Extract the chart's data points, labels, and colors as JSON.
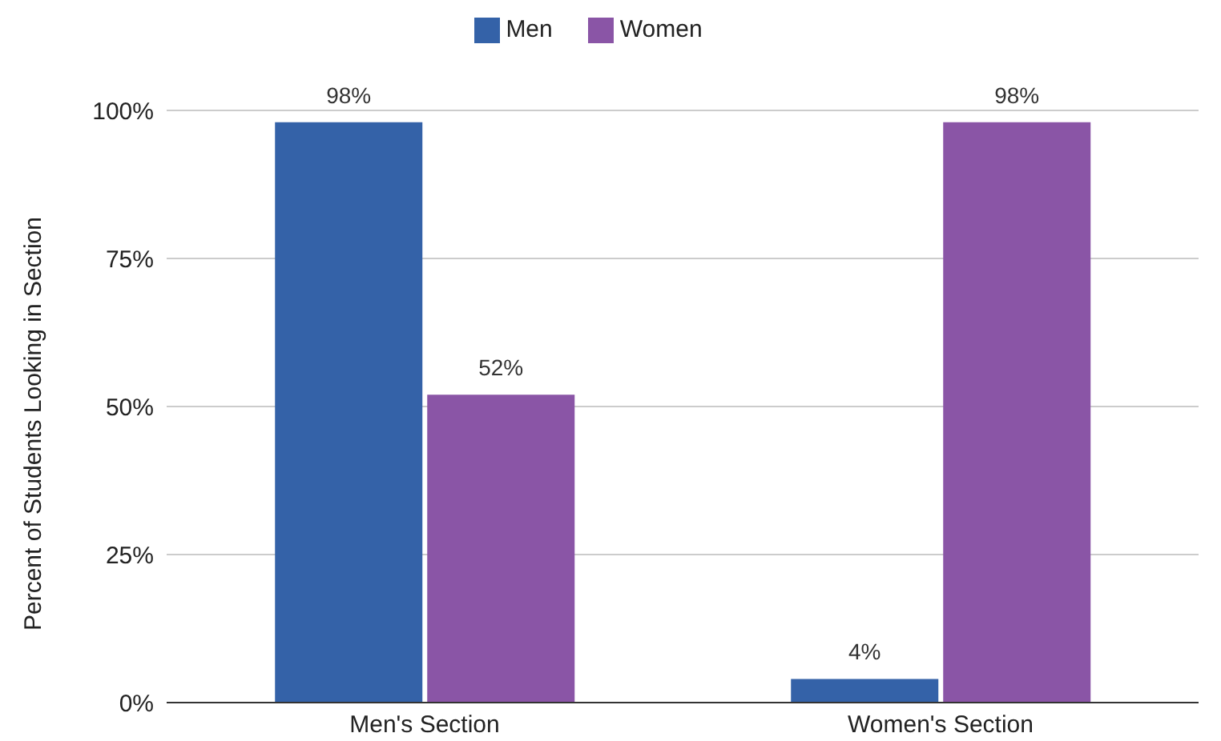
{
  "chart_data": {
    "type": "bar",
    "categories": [
      "Men's Section",
      "Women's Section"
    ],
    "ylabel": "Percent of Students Looking in Section",
    "series": [
      {
        "name": "Men",
        "color": "#3462a8",
        "values": [
          98,
          4
        ],
        "value_labels": [
          "98%",
          "4%"
        ]
      },
      {
        "name": "Women",
        "color": "#8a55a6",
        "values": [
          52,
          98
        ],
        "value_labels": [
          "52%",
          "98%"
        ]
      }
    ],
    "ylim": [
      0,
      100
    ],
    "yticks": [
      {
        "value": 0,
        "label": "0%"
      },
      {
        "value": 25,
        "label": "25%"
      },
      {
        "value": 50,
        "label": "50%"
      },
      {
        "value": 75,
        "label": "75%"
      },
      {
        "value": 100,
        "label": "100%"
      }
    ],
    "grid": "y",
    "legend": "top"
  }
}
